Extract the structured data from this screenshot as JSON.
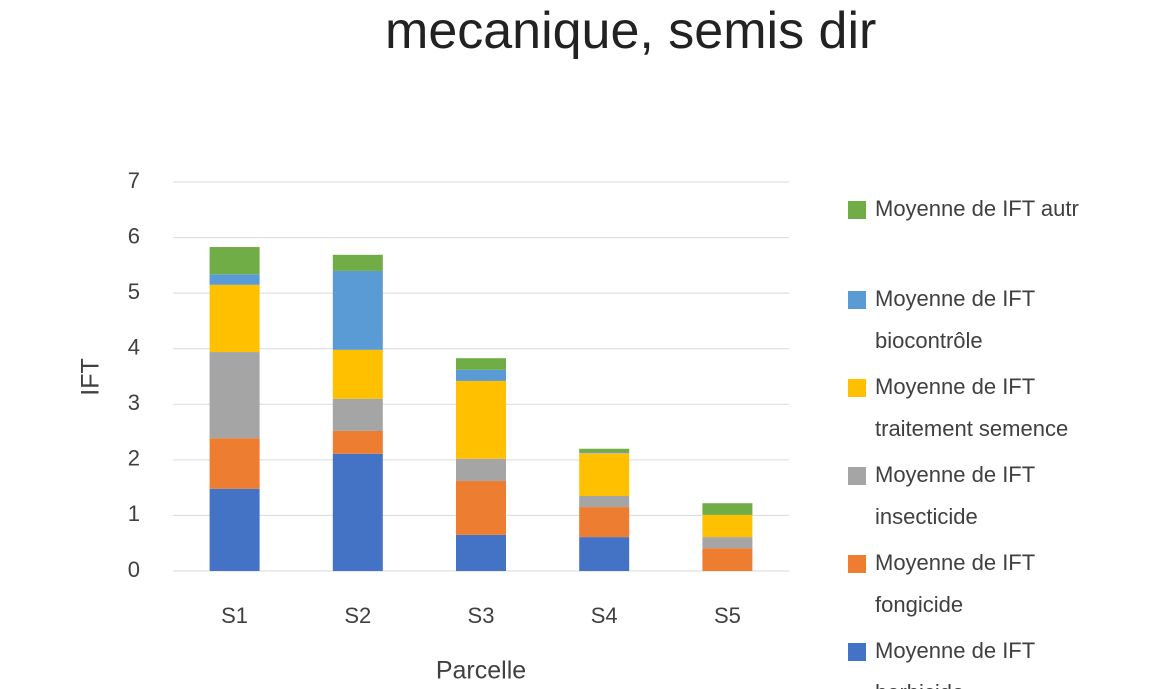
{
  "chart_data": {
    "type": "bar",
    "stacked": true,
    "title": "mecanique, semis dir",
    "x_label": "Parcelle",
    "y_label": "IFT",
    "categories": [
      "S1",
      "S2",
      "S3",
      "S4",
      "S5"
    ],
    "series": [
      {
        "name": "Moyenne de IFT herbicide",
        "color": "#4472c4",
        "values": [
          1.48,
          2.11,
          0.65,
          0.61,
          0
        ]
      },
      {
        "name": "Moyenne de IFT fongicide",
        "color": "#ed7d31",
        "values": [
          0.91,
          0.41,
          0.97,
          0.54,
          0.41
        ]
      },
      {
        "name": "Moyenne de IFT insecticide",
        "color": "#a5a5a5",
        "values": [
          1.55,
          0.58,
          0.4,
          0.2,
          0.2
        ]
      },
      {
        "name": "Moyenne de IFT traitement semence",
        "color": "#ffc000",
        "values": [
          1.21,
          0.88,
          1.4,
          0.77,
          0.4
        ]
      },
      {
        "name": "Moyenne de IFT biocontrôle",
        "color": "#5b9bd5",
        "values": [
          0.19,
          1.42,
          0.2,
          0.02,
          0
        ]
      },
      {
        "name": "Moyenne de IFT autr",
        "color": "#70ad47",
        "values": [
          0.49,
          0.29,
          0.21,
          0.06,
          0.21
        ]
      }
    ],
    "ylim": [
      0,
      7
    ],
    "yticks": [
      0,
      1,
      2,
      3,
      4,
      5,
      6,
      7
    ],
    "grid": true,
    "legend": "right"
  }
}
